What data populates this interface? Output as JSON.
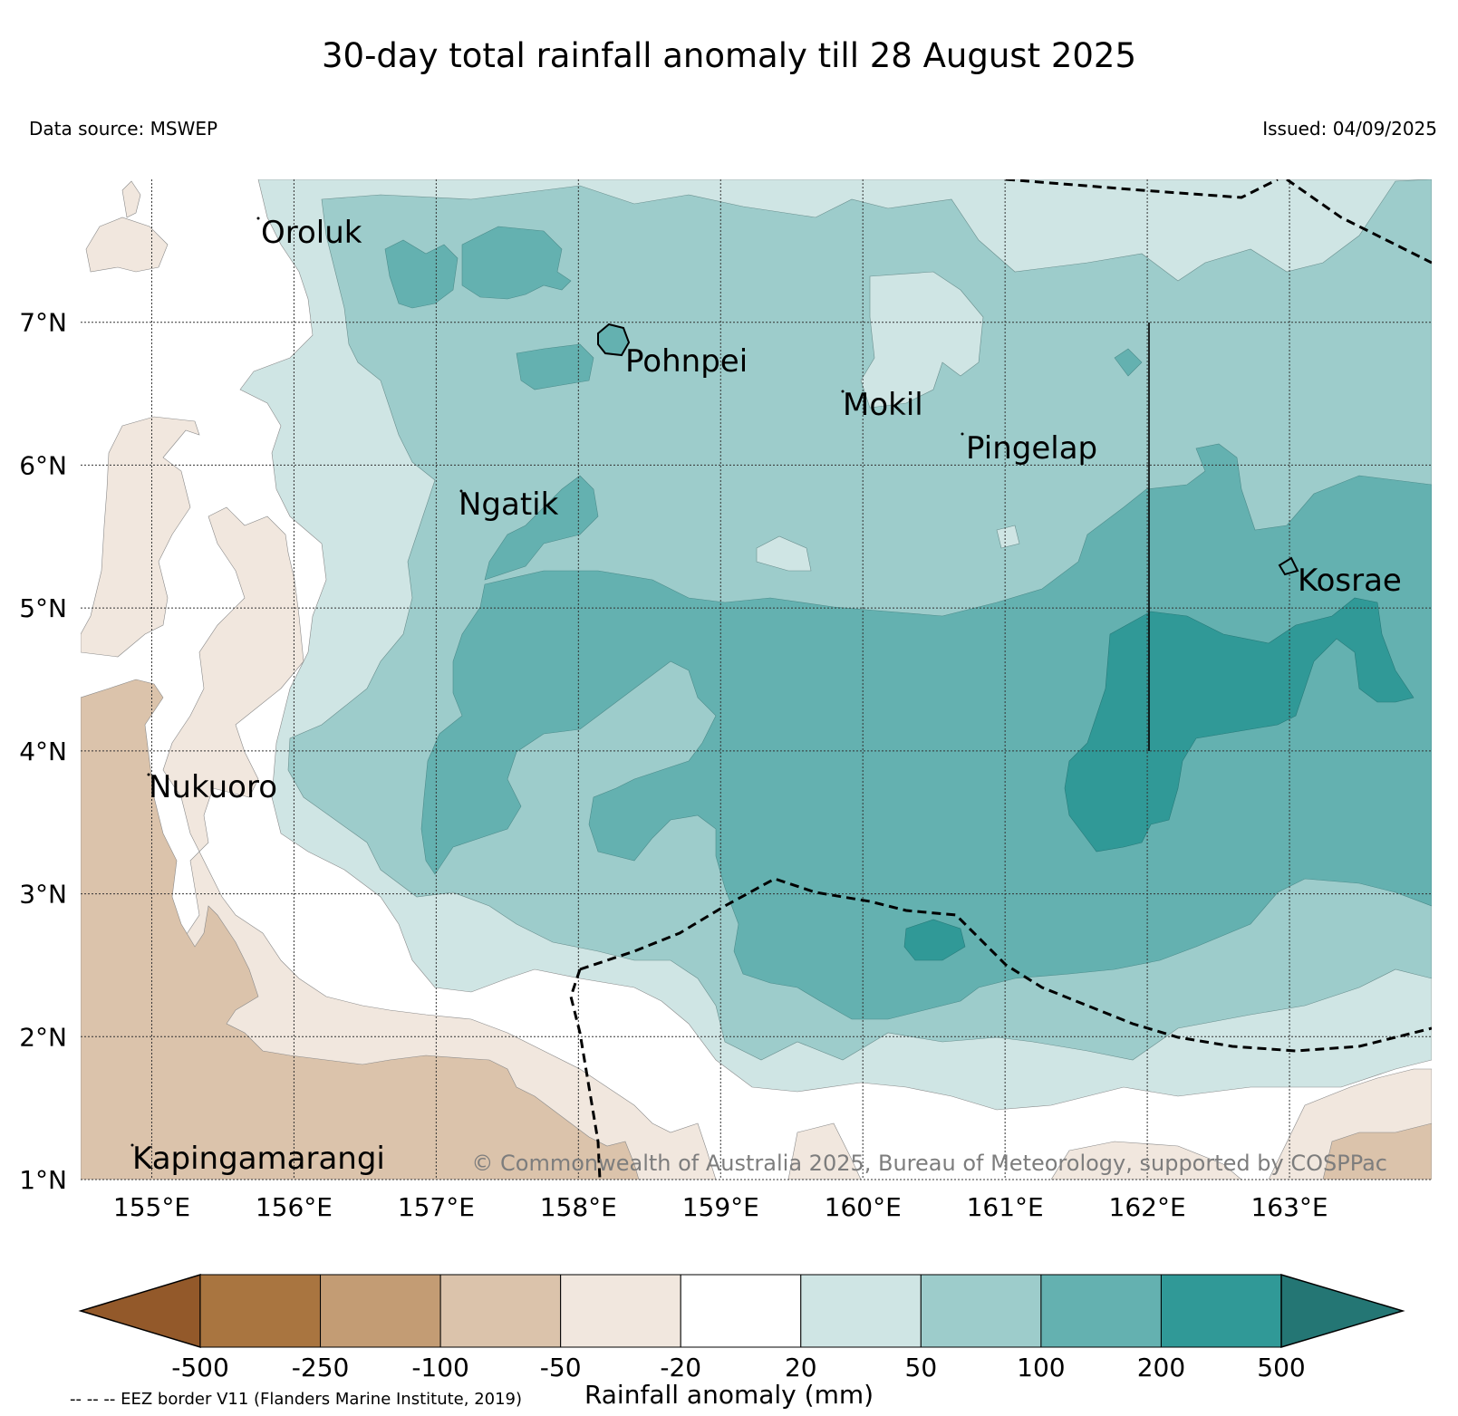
{
  "header": {
    "title": "30-day total rainfall anomaly till 28 August 2025",
    "source": "Data source: MSWEP",
    "issued": "Issued: 04/09/2025"
  },
  "map": {
    "lon_range": [
      154.5,
      164.0
    ],
    "lat_range": [
      1.0,
      8.0
    ],
    "lon_ticks": [
      "155°E",
      "156°E",
      "157°E",
      "158°E",
      "159°E",
      "160°E",
      "161°E",
      "162°E",
      "163°E"
    ],
    "lat_ticks": [
      "1°N",
      "2°N",
      "3°N",
      "4°N",
      "5°N",
      "6°N",
      "7°N"
    ],
    "gridlines": true,
    "places": [
      "Oroluk",
      "Pohnpei",
      "Mokil",
      "Pingelap",
      "Ngatik",
      "Kosrae",
      "Nukuoro",
      "Kapingamarangi"
    ],
    "copyright": "© Commonwealth of Australia 2025, Bureau of Meteorology, supported by COSPPac"
  },
  "colorbar": {
    "title": "Rainfall anomaly (mm)",
    "ticks": [
      "-500",
      "-250",
      "-100",
      "-50",
      "-20",
      "20",
      "50",
      "100",
      "200",
      "500"
    ],
    "colors": [
      "#93592a",
      "#a97540",
      "#c39c74",
      "#dbc3ab",
      "#f1e7de",
      "#ffffff",
      "#cfe5e4",
      "#9dcccb",
      "#64b1b0",
      "#309997",
      "#247674"
    ]
  },
  "footnote": "-- -- -- EEZ border V11 (Flanders Marine Institute, 2019)"
}
